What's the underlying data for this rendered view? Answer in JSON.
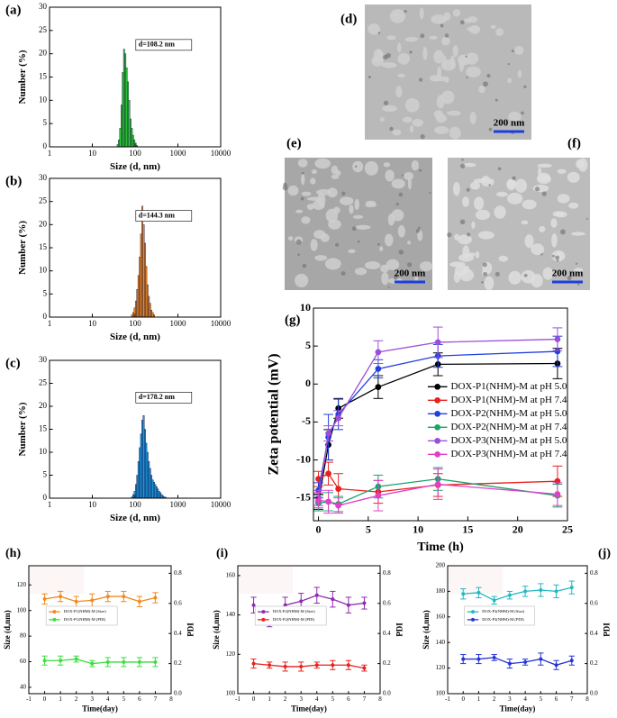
{
  "chart_data": [
    {
      "type": "histogram",
      "label": "(a)",
      "annotation": "d=108.2 nm",
      "xlabel": "Size (d, nm)",
      "ylabel": "Number (%)",
      "color": "#2fd12f",
      "xscale": "log",
      "xlim": [
        1,
        10000
      ],
      "xticks": [
        1,
        10,
        100,
        1000,
        10000
      ],
      "ylim": [
        0,
        30
      ],
      "yticks": [
        0,
        5,
        10,
        15,
        20,
        25,
        30
      ],
      "bins": [
        37.8,
        40.5,
        43.4,
        46.5,
        49.8,
        53.4,
        57.2,
        61.3,
        65.7,
        70.4,
        75.5,
        80.9,
        86.7,
        92.9,
        99.6,
        106.7,
        114.4
      ],
      "values": [
        0.5,
        1.5,
        4,
        9,
        16,
        21,
        20,
        17,
        14,
        10,
        6,
        4,
        2.5,
        1.5,
        0.8,
        0.3
      ]
    },
    {
      "type": "histogram",
      "label": "(b)",
      "annotation": "d=144.3 nm",
      "xlabel": "Size (d, nm)",
      "ylabel": "Number (%)",
      "color": "#f08a1c",
      "xscale": "log",
      "xlim": [
        1,
        10000
      ],
      "xticks": [
        1,
        10,
        100,
        1000,
        10000
      ],
      "ylim": [
        0,
        30
      ],
      "yticks": [
        0,
        5,
        10,
        15,
        20,
        25,
        30
      ],
      "bins": [
        81.9,
        87.8,
        94.1,
        100.9,
        108.2,
        116.0,
        124.3,
        133.3,
        142.9,
        153.2,
        164.2,
        176.0,
        188.7,
        202.3,
        216.9,
        232.5,
        249.2,
        267.2,
        286.4
      ],
      "values": [
        0.5,
        1,
        2,
        3.5,
        6,
        9,
        13,
        18,
        24,
        20,
        16,
        11,
        7,
        4.5,
        3,
        1.5,
        1,
        0.5
      ]
    },
    {
      "type": "histogram",
      "label": "(c)",
      "annotation": "d=178.2 nm",
      "xlabel": "Size (d, nm)",
      "ylabel": "Number (%)",
      "color": "#1a9be0",
      "xscale": "log",
      "xlim": [
        1,
        10000
      ],
      "xticks": [
        1,
        10,
        100,
        1000,
        10000
      ],
      "ylim": [
        0,
        30
      ],
      "yticks": [
        0,
        5,
        10,
        15,
        20,
        25,
        30
      ],
      "bins": [
        81.9,
        87.8,
        94.1,
        100.9,
        108.2,
        116.0,
        124.3,
        133.3,
        142.9,
        153.2,
        164.2,
        176.0,
        188.7,
        202.3,
        216.9,
        232.5,
        249.2,
        267.2,
        286.4,
        307.0,
        329.1,
        352.8,
        378.2,
        405.4,
        434.6,
        465.9,
        499.4,
        535.4
      ],
      "values": [
        0.3,
        0.8,
        1.5,
        3,
        5,
        8,
        11,
        14,
        17,
        18,
        15,
        12,
        10,
        8,
        6.5,
        5,
        4,
        3.5,
        3,
        2.5,
        2,
        1.5,
        1.2,
        0.8,
        0.5,
        0.3,
        0.2
      ]
    },
    {
      "type": "line",
      "label": "(g)",
      "xlabel": "Time (h)",
      "ylabel": "Zeta potential (mV)",
      "legend": "right",
      "xlim": [
        -0.5,
        25
      ],
      "xticks": [
        0,
        5,
        10,
        15,
        20,
        25
      ],
      "ylim": [
        -18,
        10
      ],
      "yticks": [
        -15,
        -10,
        -5,
        0,
        5,
        10
      ],
      "x": [
        0,
        1,
        2,
        6,
        12,
        24
      ],
      "series": [
        {
          "name": "DOX-P1(NHM)-M at pH 5.0",
          "color": "#000000",
          "values": [
            -15.5,
            -8,
            -3.2,
            -0.4,
            2.6,
            2.7
          ],
          "errors": [
            1,
            2,
            1.3,
            1.5,
            1.5,
            2
          ]
        },
        {
          "name": "DOX-P1(NHM)-M at pH 7.4",
          "color": "#e8211d",
          "values": [
            -12.5,
            -11.8,
            -13.8,
            -14.2,
            -13.3,
            -12.8
          ],
          "errors": [
            1,
            1.5,
            2,
            1.5,
            1.5,
            2
          ]
        },
        {
          "name": "DOX-P2(NHM)-M at pH 5.0",
          "color": "#2140e0",
          "values": [
            -14,
            -7,
            -4,
            2,
            3.7,
            4.3
          ],
          "errors": [
            1,
            3,
            2,
            1.2,
            1.5,
            2
          ]
        },
        {
          "name": "DOX-P2(NHM)-M at pH 7.4",
          "color": "#1aa36b",
          "values": [
            -15.7,
            -15.5,
            -15.8,
            -13.5,
            -12.5,
            -14.7
          ],
          "errors": [
            1,
            1.2,
            1,
            1.5,
            1.5,
            1.5
          ]
        },
        {
          "name": "DOX-P3(NHM)-M at pH 5.0",
          "color": "#9b4fd6",
          "values": [
            -15,
            -6.5,
            -4.5,
            4.2,
            5.5,
            5.9
          ],
          "errors": [
            1,
            1,
            1,
            1.5,
            2,
            1.5
          ]
        },
        {
          "name": "DOX-P3(NHM)-M at pH 7.4",
          "color": "#e040c8",
          "values": [
            -15.3,
            -15.5,
            -16,
            -14.7,
            -13.2,
            -14.5
          ],
          "errors": [
            1,
            1.5,
            1,
            2,
            2,
            1.5
          ]
        }
      ]
    },
    {
      "type": "line",
      "label": "(h)",
      "xlabel": "Time(day)",
      "ylabel": "Size (d,nm)",
      "y2label": "PDI",
      "legend": "center left",
      "xlim": [
        -1,
        8
      ],
      "xticks": [
        -1,
        0,
        1,
        2,
        3,
        4,
        5,
        6,
        7,
        8
      ],
      "ylim": [
        35,
        135
      ],
      "yticks": [
        40,
        60,
        80,
        100,
        120
      ],
      "y2lim": [
        0,
        0.85
      ],
      "y2ticks": [
        {
          "value": 0,
          "label": "0.0"
        },
        0.2,
        0.4,
        0.6,
        0.8
      ],
      "x": [
        0,
        1,
        2,
        3,
        4,
        5,
        6,
        7
      ],
      "series": [
        {
          "name": "DOX-P1(NHM)-M (Size)",
          "color": "#f08a1c",
          "values": [
            109,
            111,
            107,
            108,
            111,
            111,
            107,
            110
          ],
          "errors": [
            4,
            4,
            4,
            5,
            4,
            4,
            4,
            4
          ]
        },
        {
          "name": "DOX-P1(NHM)-M (PDI)",
          "color": "#3ddc3d",
          "axis": "y2",
          "values": [
            0.22,
            0.22,
            0.23,
            0.2,
            0.21,
            0.21,
            0.21,
            0.21
          ],
          "errors": [
            0.03,
            0.03,
            0.02,
            0.02,
            0.03,
            0.03,
            0.03,
            0.03
          ]
        }
      ]
    },
    {
      "type": "line",
      "label": "(i)",
      "xlabel": "Time(day)",
      "ylabel": "Size (d,nm)",
      "y2label": "PDI",
      "legend": "center left",
      "xlim": [
        -1,
        8
      ],
      "xticks": [
        -1,
        0,
        1,
        2,
        3,
        4,
        5,
        6,
        7,
        8
      ],
      "ylim": [
        100,
        165
      ],
      "yticks": [
        100,
        120,
        140,
        160
      ],
      "y2lim": [
        0,
        0.85
      ],
      "y2ticks": [
        {
          "value": 0,
          "label": "0.0"
        },
        0.2,
        0.4,
        0.6,
        0.8
      ],
      "x": [
        0,
        1,
        2,
        3,
        4,
        5,
        6,
        7
      ],
      "series": [
        {
          "name": "DOX-P2(NHM)-M (Size)",
          "color": "#8e2ab0",
          "values": [
            145,
            138,
            145,
            147,
            150,
            148,
            145,
            146
          ],
          "errors": [
            4,
            4,
            4,
            4,
            4,
            4,
            4,
            3
          ]
        },
        {
          "name": "DOX-P2(NHM)-M (PDI)",
          "color": "#e8211d",
          "axis": "y2",
          "values": [
            0.2,
            0.19,
            0.18,
            0.18,
            0.19,
            0.19,
            0.19,
            0.17
          ],
          "errors": [
            0.03,
            0.02,
            0.03,
            0.03,
            0.02,
            0.03,
            0.03,
            0.02
          ]
        }
      ]
    },
    {
      "type": "line",
      "label": "(j)",
      "xlabel": "Time(day)",
      "ylabel": "Size (d,nm)",
      "y2label": "PDI",
      "legend": "center left",
      "xlim": [
        -1,
        8
      ],
      "xticks": [
        -1,
        0,
        1,
        2,
        3,
        4,
        5,
        6,
        7,
        8
      ],
      "ylim": [
        100,
        200
      ],
      "yticks": [
        100,
        120,
        140,
        160,
        180,
        200
      ],
      "y2lim": [
        0,
        0.85
      ],
      "y2ticks": [
        {
          "value": 0,
          "label": "0.0"
        },
        0.2,
        0.4,
        0.6,
        0.8
      ],
      "x": [
        0,
        1,
        2,
        3,
        4,
        5,
        6,
        7
      ],
      "series": [
        {
          "name": "DOX-P3(NHM)-M (Size)",
          "color": "#22b8c0",
          "values": [
            178,
            179,
            173,
            177,
            180,
            181,
            180,
            183
          ],
          "errors": [
            4,
            4,
            3,
            3,
            4,
            5,
            5,
            5
          ]
        },
        {
          "name": "DOX-P3(NHM)-M (PDI)",
          "color": "#2433d6",
          "axis": "y2",
          "values": [
            0.23,
            0.23,
            0.24,
            0.2,
            0.21,
            0.23,
            0.19,
            0.22
          ],
          "errors": [
            0.03,
            0.03,
            0.02,
            0.03,
            0.02,
            0.04,
            0.03,
            0.03
          ]
        }
      ]
    }
  ],
  "images": [
    {
      "label": "(d)",
      "scale_bar": "200 nm"
    },
    {
      "label": "(e)",
      "scale_bar": "200 nm"
    },
    {
      "label": "(f)",
      "scale_bar": "200 nm"
    }
  ]
}
